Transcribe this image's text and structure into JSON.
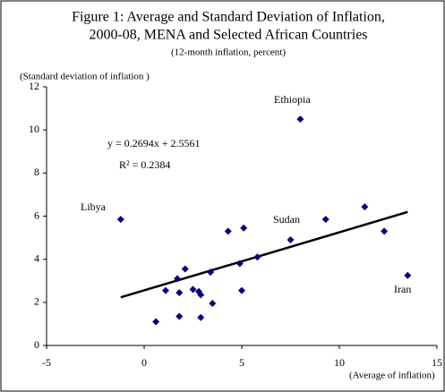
{
  "chart_data": {
    "type": "scatter",
    "title": [
      "Figure 1: Average and Standard Deviation of Inflation,",
      "2000-08, MENA and Selected African Countries"
    ],
    "subtitle": "(12-month inflation, percent)",
    "x_label": "(Average of inflation)",
    "y_label": "(Standard deviation of inflation )",
    "color": "#000080",
    "x": [
      -1.2,
      8.0,
      9.3,
      11.3,
      12.3,
      13.5,
      7.5,
      0.6,
      1.1,
      1.7,
      1.8,
      1.8,
      2.1,
      2.5,
      2.8,
      2.9,
      2.9,
      3.4,
      3.5,
      4.3,
      4.9,
      5.0,
      5.1,
      5.8
    ],
    "values": [
      5.85,
      10.5,
      5.85,
      6.43,
      5.3,
      3.25,
      4.9,
      1.1,
      2.55,
      3.1,
      1.35,
      2.45,
      3.55,
      2.6,
      2.5,
      1.3,
      2.35,
      3.4,
      1.95,
      5.3,
      3.8,
      2.55,
      5.45,
      4.1
    ],
    "annotations": [
      "Libya",
      "Ethiopia",
      "Sudan",
      "Iran"
    ],
    "trendline": {
      "slope": 0.2694,
      "intercept": 2.5561,
      "equation": "y = 0.2694x + 2.5561",
      "r_squared": "R² = 0.2384"
    },
    "xlim": [
      -5,
      15
    ],
    "xticks": [
      -5,
      0,
      5,
      10,
      15
    ],
    "ylim": [
      0,
      12
    ],
    "yticks": [
      0,
      2,
      4,
      6,
      8,
      10,
      12
    ]
  }
}
